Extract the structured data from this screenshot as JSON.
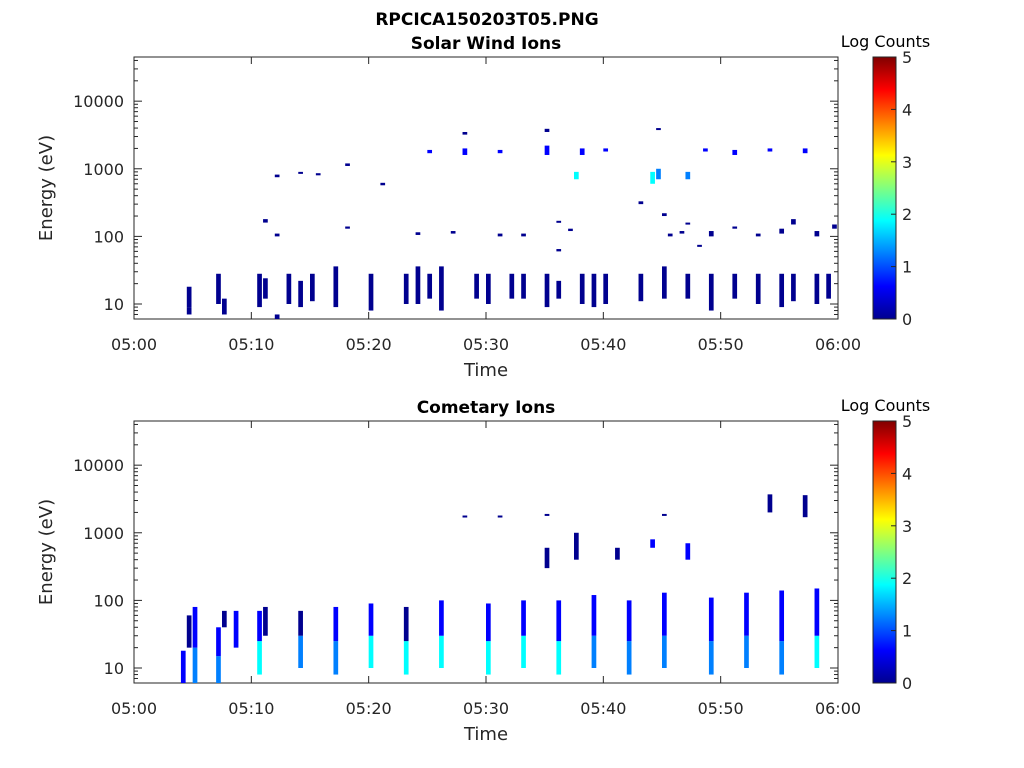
{
  "figure": {
    "title": "RPCICA150203T05.PNG"
  },
  "colormap": [
    "#00008f",
    "#0000ff",
    "#0080ff",
    "#00ffff",
    "#80ff80",
    "#ffff00",
    "#ff8000",
    "#ff0000",
    "#800000"
  ],
  "chart_data": [
    {
      "type": "heatmap",
      "title": "Solar Wind Ions",
      "xlabel": "Time",
      "ylabel": "Energy (eV)",
      "x_range": [
        "05:00",
        "06:00"
      ],
      "x_ticks": [
        "05:00",
        "05:10",
        "05:20",
        "05:30",
        "05:40",
        "05:50",
        "06:00"
      ],
      "y_scale": "log",
      "y_range": [
        6,
        45000
      ],
      "y_ticks": [
        10,
        100,
        1000,
        10000
      ],
      "y_tick_labels": [
        "10",
        "100",
        "1000",
        "10000"
      ],
      "colorbar": {
        "label": "Log Counts",
        "range": [
          0,
          5
        ],
        "ticks": [
          "0",
          "1",
          "2",
          "3",
          "4",
          "5"
        ]
      },
      "cells": [
        [
          4.5,
          9,
          18,
          0.3
        ],
        [
          4.5,
          7,
          9,
          0.2
        ],
        [
          7,
          10,
          28,
          0.3
        ],
        [
          7.5,
          7,
          12,
          0.2
        ],
        [
          10.5,
          9,
          28,
          0.2
        ],
        [
          11,
          12,
          24,
          0.2
        ],
        [
          12,
          6,
          7,
          0.2
        ],
        [
          13,
          10,
          28,
          0.2
        ],
        [
          14,
          9,
          22,
          0.2
        ],
        [
          15,
          11,
          28,
          0.2
        ],
        [
          17,
          9,
          36,
          0.2
        ],
        [
          20,
          8,
          28,
          0.2
        ],
        [
          23,
          10,
          28,
          0.2
        ],
        [
          24,
          10,
          36,
          0.2
        ],
        [
          25,
          12,
          28,
          0.2
        ],
        [
          26,
          8,
          36,
          0.2
        ],
        [
          29,
          12,
          28,
          0.2
        ],
        [
          30,
          10,
          28,
          0.2
        ],
        [
          32,
          12,
          28,
          0.2
        ],
        [
          33,
          12,
          28,
          0.2
        ],
        [
          35,
          9,
          28,
          0.3
        ],
        [
          36,
          12,
          22,
          0.2
        ],
        [
          38,
          10,
          28,
          0.2
        ],
        [
          39,
          9,
          28,
          0.2
        ],
        [
          40,
          10,
          28,
          0.2
        ],
        [
          43,
          11,
          28,
          0.2
        ],
        [
          45,
          12,
          36,
          0.2
        ],
        [
          47,
          12,
          28,
          0.2
        ],
        [
          49,
          8,
          28,
          0.2
        ],
        [
          51,
          12,
          28,
          0.2
        ],
        [
          53,
          10,
          28,
          0.2
        ],
        [
          55,
          9,
          28,
          0.2
        ],
        [
          56,
          11,
          28,
          0.2
        ],
        [
          58,
          10,
          28,
          0.3
        ],
        [
          59,
          12,
          28,
          0.2
        ],
        [
          25,
          1700,
          1900,
          0.4
        ],
        [
          28,
          1600,
          2000,
          0.4
        ],
        [
          31,
          1700,
          1900,
          0.4
        ],
        [
          35,
          1600,
          2200,
          0.4
        ],
        [
          38,
          1600,
          2000,
          0.4
        ],
        [
          40,
          1800,
          2000,
          0.4
        ],
        [
          44,
          600,
          900,
          1.6
        ],
        [
          44.5,
          700,
          1000,
          1.1
        ],
        [
          47,
          700,
          900,
          1.5
        ],
        [
          37.5,
          700,
          900,
          1.8
        ],
        [
          48.5,
          1800,
          2000,
          0.4
        ],
        [
          51,
          1600,
          1900,
          0.4
        ],
        [
          54,
          1800,
          2000,
          0.4
        ],
        [
          57,
          1700,
          2000,
          0.4
        ],
        [
          35,
          3500,
          3900,
          0.3
        ],
        [
          44.5,
          3800,
          4000,
          0.3
        ],
        [
          28,
          3200,
          3500,
          0.3
        ],
        [
          12,
          750,
          820,
          0.3
        ],
        [
          14,
          850,
          900,
          0.3
        ],
        [
          15.5,
          800,
          860,
          0.3
        ],
        [
          18,
          1100,
          1200,
          0.3
        ],
        [
          21,
          570,
          620,
          0.3
        ],
        [
          11,
          160,
          180,
          0.3
        ],
        [
          12,
          100,
          110,
          0.3
        ],
        [
          18,
          130,
          140,
          0.3
        ],
        [
          24,
          105,
          115,
          0.3
        ],
        [
          27,
          110,
          120,
          0.3
        ],
        [
          31,
          100,
          110,
          0.3
        ],
        [
          33,
          100,
          110,
          0.3
        ],
        [
          36,
          160,
          170,
          0.3
        ],
        [
          37,
          120,
          130,
          0.3
        ],
        [
          43,
          300,
          330,
          0.3
        ],
        [
          45,
          200,
          220,
          0.3
        ],
        [
          47,
          150,
          160,
          0.3
        ],
        [
          49,
          100,
          120,
          0.3
        ],
        [
          51,
          130,
          140,
          0.3
        ],
        [
          53,
          100,
          110,
          0.3
        ],
        [
          55,
          110,
          130,
          0.3
        ],
        [
          56,
          150,
          180,
          0.3
        ],
        [
          58,
          100,
          120,
          0.3
        ],
        [
          59.5,
          130,
          150,
          0.3
        ],
        [
          45.5,
          100,
          110,
          0.3
        ],
        [
          46.5,
          110,
          120,
          0.3
        ],
        [
          48,
          70,
          75,
          0.3
        ],
        [
          36,
          60,
          65,
          0.3
        ]
      ]
    },
    {
      "type": "heatmap",
      "title": "Cometary Ions",
      "xlabel": "Time",
      "ylabel": "Energy (eV)",
      "x_range": [
        "05:00",
        "06:00"
      ],
      "x_ticks": [
        "05:00",
        "05:10",
        "05:20",
        "05:30",
        "05:40",
        "05:50",
        "06:00"
      ],
      "y_scale": "log",
      "y_range": [
        6,
        45000
      ],
      "y_ticks": [
        10,
        100,
        1000,
        10000
      ],
      "y_tick_labels": [
        "10",
        "100",
        "1000",
        "10000"
      ],
      "colorbar": {
        "label": "Log Counts",
        "range": [
          0,
          5
        ],
        "ticks": [
          "0",
          "1",
          "2",
          "3",
          "4",
          "5"
        ]
      },
      "cells": [
        [
          4,
          6,
          18,
          0.5
        ],
        [
          4.5,
          20,
          60,
          0.3
        ],
        [
          5,
          6,
          20,
          1.2
        ],
        [
          5,
          20,
          80,
          0.4
        ],
        [
          7,
          6,
          15,
          1.4
        ],
        [
          7,
          15,
          40,
          0.6
        ],
        [
          7.5,
          40,
          70,
          0.3
        ],
        [
          8.5,
          20,
          70,
          0.5
        ],
        [
          10.5,
          8,
          25,
          1.6
        ],
        [
          10.5,
          25,
          70,
          0.4
        ],
        [
          11,
          30,
          80,
          0.3
        ],
        [
          14,
          10,
          30,
          1.4
        ],
        [
          14,
          30,
          70,
          0.3
        ],
        [
          17,
          8,
          25,
          1.5
        ],
        [
          17,
          25,
          80,
          0.4
        ],
        [
          20,
          10,
          30,
          1.8
        ],
        [
          20,
          30,
          90,
          0.4
        ],
        [
          23,
          8,
          25,
          1.6
        ],
        [
          23,
          25,
          80,
          0.3
        ],
        [
          26,
          10,
          30,
          1.7
        ],
        [
          26,
          30,
          100,
          0.4
        ],
        [
          30,
          8,
          25,
          1.8
        ],
        [
          30,
          25,
          90,
          0.4
        ],
        [
          33,
          10,
          30,
          1.7
        ],
        [
          33,
          30,
          100,
          0.4
        ],
        [
          36,
          8,
          25,
          1.8
        ],
        [
          36,
          25,
          100,
          0.5
        ],
        [
          39,
          10,
          30,
          1.5
        ],
        [
          39,
          30,
          120,
          0.4
        ],
        [
          42,
          8,
          25,
          1.5
        ],
        [
          42,
          25,
          100,
          0.4
        ],
        [
          45,
          10,
          30,
          1.4
        ],
        [
          45,
          30,
          130,
          0.4
        ],
        [
          49,
          8,
          25,
          1.3
        ],
        [
          49,
          25,
          110,
          0.4
        ],
        [
          52,
          10,
          30,
          1.5
        ],
        [
          52,
          30,
          130,
          0.4
        ],
        [
          55,
          8,
          25,
          1.4
        ],
        [
          55,
          25,
          140,
          0.4
        ],
        [
          58,
          10,
          30,
          1.6
        ],
        [
          58,
          30,
          150,
          0.4
        ],
        [
          35,
          300,
          600,
          0.3
        ],
        [
          37.5,
          400,
          1000,
          0.3
        ],
        [
          41,
          400,
          600,
          0.3
        ],
        [
          44,
          600,
          800,
          0.4
        ],
        [
          47,
          400,
          700,
          0.4
        ],
        [
          28,
          1700,
          1800,
          0.3
        ],
        [
          31,
          1700,
          1800,
          0.3
        ],
        [
          35,
          1800,
          1900,
          0.3
        ],
        [
          45,
          1800,
          1900,
          0.3
        ],
        [
          54,
          2000,
          3700,
          0.3
        ],
        [
          57,
          1700,
          3600,
          0.3
        ]
      ]
    }
  ]
}
